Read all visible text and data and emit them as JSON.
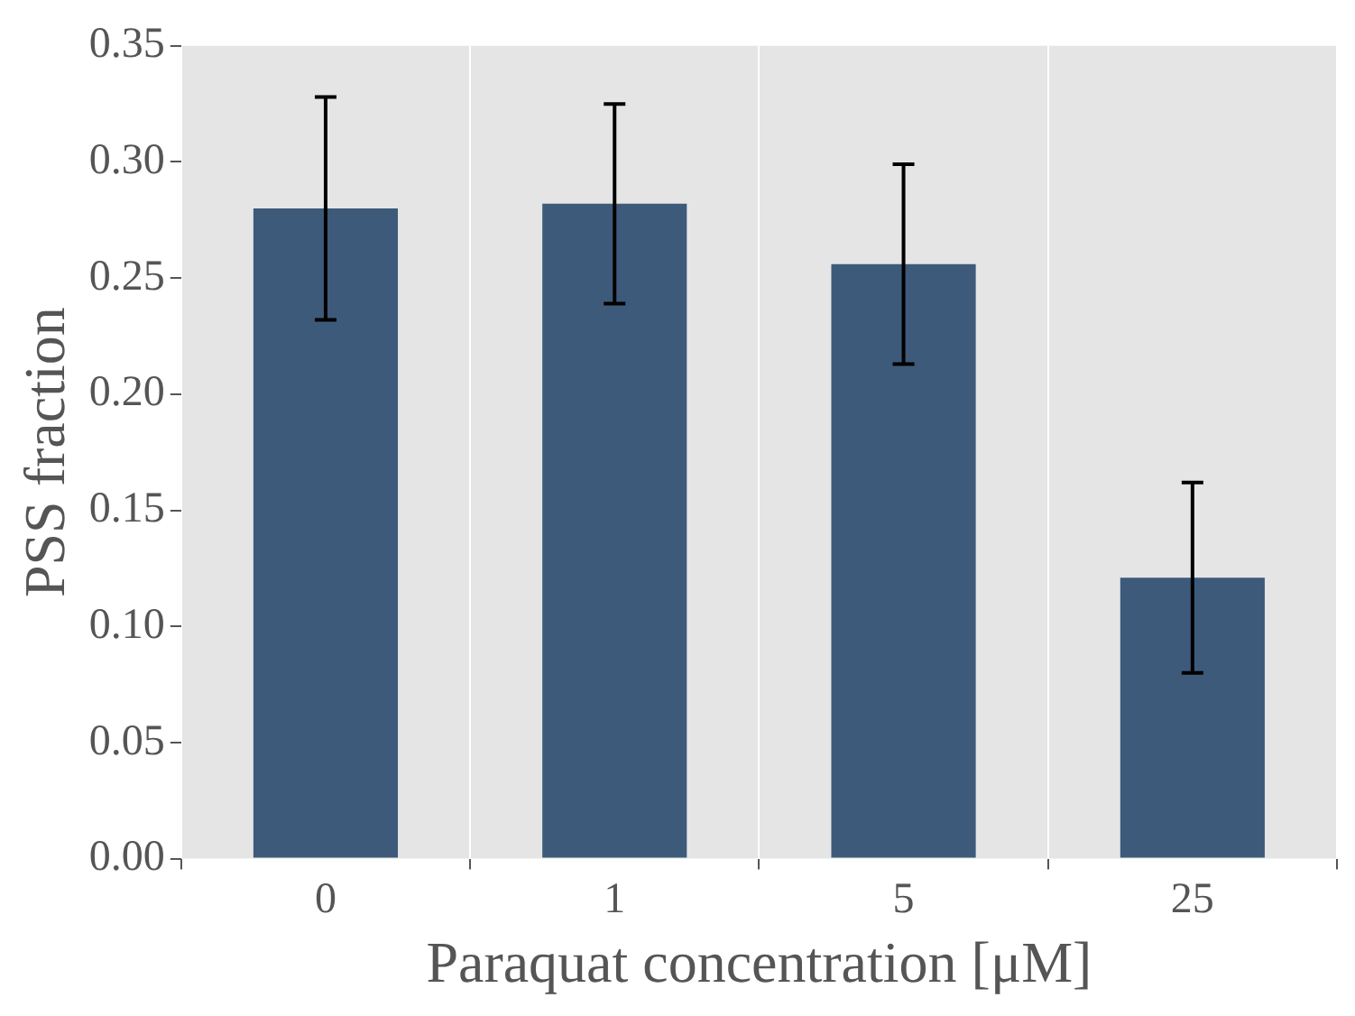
{
  "chart_data": {
    "type": "bar",
    "xlabel": "Paraquat concentration [μM]",
    "ylabel": "PSS fraction",
    "categories": [
      "0",
      "1",
      "5",
      "25"
    ],
    "values": [
      0.28,
      0.282,
      0.256,
      0.121
    ],
    "errors": [
      0.048,
      0.043,
      0.043,
      0.041
    ],
    "color": "#3d5a7a",
    "ylim": [
      0,
      0.35
    ],
    "yticks": [
      {
        "value": 0,
        "label": "0.00"
      },
      {
        "value": 0.05,
        "label": "0.05"
      },
      {
        "value": 0.1,
        "label": "0.10"
      },
      {
        "value": 0.15,
        "label": "0.15"
      },
      {
        "value": 0.2,
        "label": "0.20"
      },
      {
        "value": 0.25,
        "label": "0.25"
      },
      {
        "value": 0.3,
        "label": "0.30"
      },
      {
        "value": 0.35,
        "label": "0.35"
      }
    ],
    "grid": "x",
    "legend": false
  }
}
